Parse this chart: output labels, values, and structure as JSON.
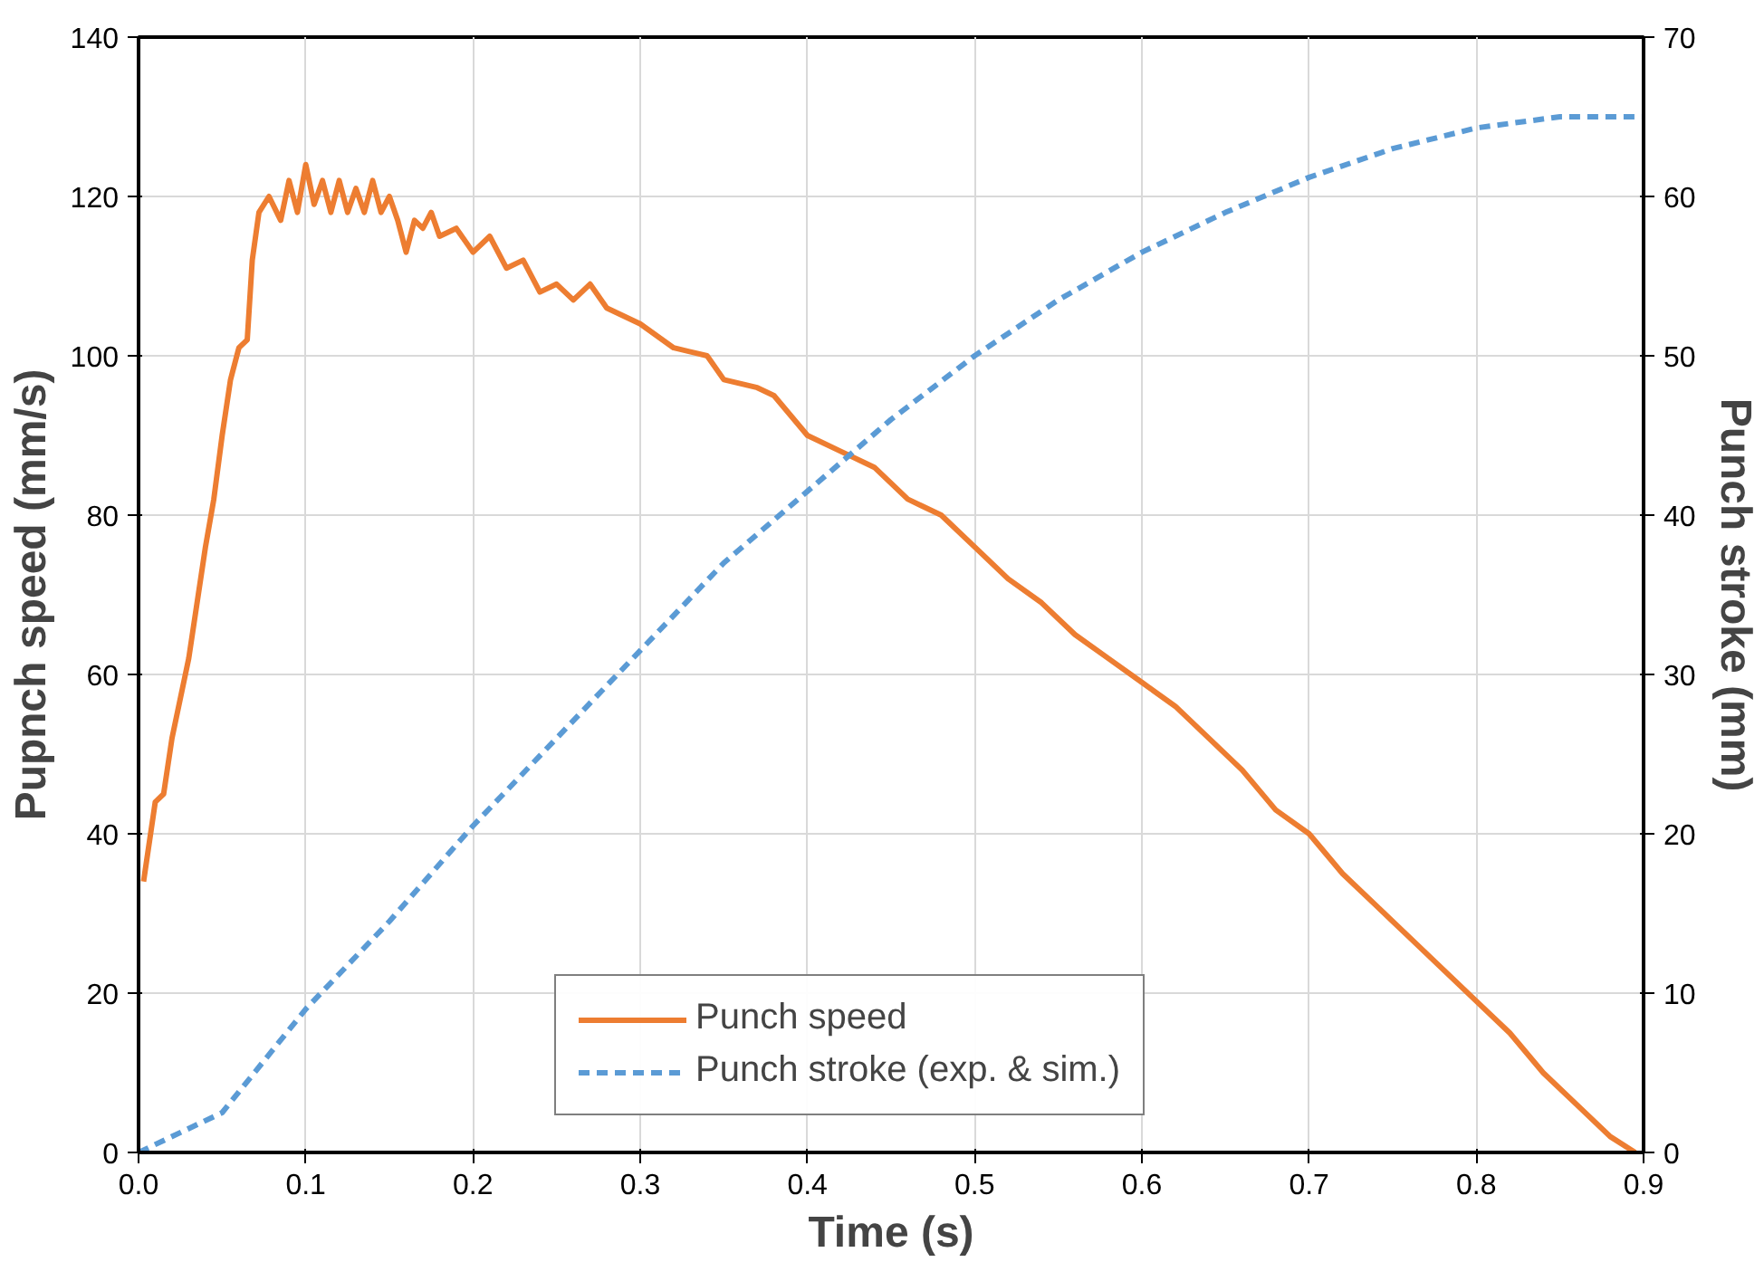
{
  "chart_data": {
    "type": "line",
    "xlabel": "Time (s)",
    "ylabel": "Pupnch speed (mm/s)",
    "y2label": "Punch stroke (mm)",
    "xlim": [
      0,
      0.9
    ],
    "xticks": [
      {
        "value": 0,
        "label": "0.0"
      },
      0.1,
      0.2,
      0.3,
      0.4,
      0.5,
      0.6,
      0.7,
      0.8,
      0.9
    ],
    "ylim": [
      0,
      140
    ],
    "yticks": [
      0,
      20,
      40,
      60,
      80,
      100,
      120,
      140
    ],
    "y2lim": [
      0,
      70
    ],
    "y2ticks": [
      0,
      10,
      20,
      30,
      40,
      50,
      60,
      70
    ],
    "grid": true,
    "legend": "bottom",
    "series": [
      {
        "name": "Punch speed",
        "color": "#ed7d31",
        "line_style": "solid",
        "x": [
          0.003,
          0.01,
          0.015,
          0.02,
          0.03,
          0.04,
          0.045,
          0.05,
          0.055,
          0.06,
          0.065,
          0.068,
          0.072,
          0.078,
          0.085,
          0.09,
          0.095,
          0.1,
          0.105,
          0.11,
          0.115,
          0.12,
          0.125,
          0.13,
          0.135,
          0.14,
          0.145,
          0.15,
          0.155,
          0.16,
          0.165,
          0.17,
          0.175,
          0.18,
          0.19,
          0.2,
          0.21,
          0.22,
          0.23,
          0.24,
          0.25,
          0.26,
          0.27,
          0.28,
          0.3,
          0.32,
          0.34,
          0.35,
          0.37,
          0.38,
          0.4,
          0.42,
          0.44,
          0.46,
          0.48,
          0.5,
          0.52,
          0.54,
          0.56,
          0.58,
          0.6,
          0.62,
          0.64,
          0.66,
          0.68,
          0.7,
          0.72,
          0.74,
          0.76,
          0.78,
          0.8,
          0.82,
          0.84,
          0.86,
          0.88,
          0.895
        ],
        "values": [
          34,
          44,
          45,
          52,
          62,
          76,
          82,
          90,
          97,
          101,
          102,
          112,
          118,
          120,
          117,
          122,
          118,
          124,
          119,
          122,
          118,
          122,
          118,
          121,
          118,
          122,
          118,
          120,
          117,
          113,
          117,
          116,
          118,
          115,
          116,
          113,
          115,
          111,
          112,
          108,
          109,
          107,
          109,
          106,
          104,
          101,
          100,
          97,
          96,
          95,
          90,
          88,
          86,
          82,
          80,
          76,
          72,
          69,
          65,
          62,
          59,
          56,
          52,
          48,
          43,
          40,
          35,
          31,
          27,
          23,
          19,
          15,
          10,
          6,
          2,
          0
        ]
      },
      {
        "name": "Punch stroke (exp. & sim.)",
        "color": "#5b9bd5",
        "axis": "y2",
        "line_style": "dashed",
        "x": [
          0,
          0.05,
          0.1,
          0.15,
          0.2,
          0.25,
          0.3,
          0.35,
          0.4,
          0.45,
          0.5,
          0.55,
          0.6,
          0.65,
          0.7,
          0.75,
          0.8,
          0.85,
          0.9
        ],
        "values": [
          0,
          2.5,
          9,
          14.5,
          20.5,
          26,
          31.5,
          37,
          41.5,
          46,
          50,
          53.5,
          56.5,
          59,
          61.2,
          63,
          64.3,
          65,
          65
        ]
      }
    ]
  }
}
